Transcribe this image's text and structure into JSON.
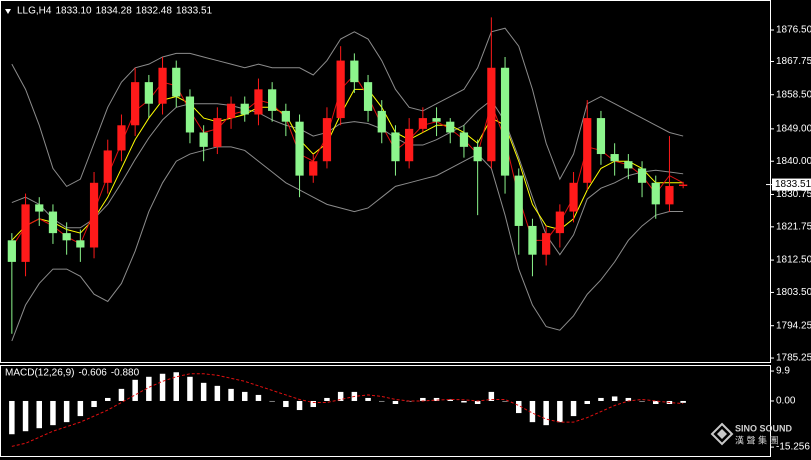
{
  "chart_data": [
    {
      "type": "candlestick",
      "title": "LLG,H4",
      "header_values": [
        {
          "value": 1833.1,
          "label": "1833.10"
        },
        {
          "value": 1834.28,
          "label": "1834.28"
        },
        {
          "value": 1832.48,
          "label": "1832.48"
        },
        {
          "value": 1833.51,
          "label": "1833.51"
        }
      ],
      "current_price": {
        "value": 1833.51,
        "label": "1833.51"
      },
      "up_color": "#ff1a1a",
      "down_color": "#8cf58c",
      "open": [
        1818,
        1812,
        1828,
        1826,
        1820,
        1818,
        1816,
        1834,
        1843,
        1850,
        1862,
        1856,
        1866,
        1858,
        1848,
        1844,
        1852,
        1856,
        1853,
        1860,
        1854,
        1851,
        1836,
        1840,
        1852,
        1868,
        1862,
        1854,
        1848,
        1840,
        1849,
        1852,
        1851,
        1848,
        1844,
        1840,
        1866,
        1836,
        1822,
        1814,
        1820,
        1826,
        1834,
        1852,
        1842,
        1840,
        1838,
        1834,
        1828,
        1833.1
      ],
      "high": [
        1820,
        1831,
        1830,
        1828,
        1823,
        1821,
        1837,
        1846,
        1853,
        1866,
        1864,
        1869,
        1868,
        1860,
        1850,
        1855,
        1858,
        1858,
        1863,
        1862,
        1856,
        1853,
        1842,
        1855,
        1872,
        1870,
        1864,
        1857,
        1850,
        1852,
        1855,
        1855,
        1852,
        1850,
        1846,
        1880,
        1869,
        1838,
        1824,
        1822,
        1828,
        1837,
        1857,
        1854,
        1845,
        1842,
        1840,
        1836,
        1847,
        1834.28
      ],
      "low": [
        1792,
        1808,
        1822,
        1817,
        1814,
        1812,
        1813,
        1831,
        1840,
        1847,
        1852,
        1853,
        1855,
        1845,
        1840,
        1842,
        1849,
        1851,
        1850,
        1851,
        1847,
        1830,
        1834,
        1838,
        1850,
        1859,
        1851,
        1845,
        1836,
        1838,
        1848,
        1847,
        1845,
        1841,
        1825,
        1838,
        1831,
        1814,
        1808,
        1811,
        1816,
        1823,
        1832,
        1839,
        1836,
        1835,
        1830,
        1824,
        1826,
        1832.48
      ],
      "close": [
        1812,
        1828,
        1826,
        1820,
        1818,
        1816,
        1834,
        1843,
        1850,
        1862,
        1856,
        1866,
        1858,
        1848,
        1844,
        1852,
        1856,
        1853,
        1860,
        1854,
        1851,
        1836,
        1840,
        1852,
        1868,
        1862,
        1854,
        1848,
        1840,
        1849,
        1852,
        1851,
        1848,
        1844,
        1840,
        1866,
        1836,
        1822,
        1814,
        1820,
        1826,
        1834,
        1852,
        1842,
        1840,
        1838,
        1834,
        1828,
        1833.1,
        1833.51
      ],
      "overlays": [
        {
          "color": "#8c8c8c",
          "values": [
            1867,
            1860,
            1850,
            1838,
            1833,
            1835,
            1845,
            1855,
            1862,
            1866,
            1867,
            1869,
            1870,
            1870,
            1869,
            1868,
            1867,
            1866,
            1867,
            1866,
            1866,
            1866,
            1864,
            1868,
            1874,
            1876,
            1874,
            1868,
            1860,
            1855,
            1854,
            1856,
            1858,
            1860,
            1866,
            1876,
            1877,
            1872,
            1860,
            1845,
            1835,
            1842,
            1856,
            1858,
            1856,
            1854,
            1852,
            1850,
            1848,
            1847
          ]
        },
        {
          "color": "#8c8c8c",
          "values": [
            1828.5,
            1830,
            1828,
            1824,
            1821.5,
            1821.5,
            1824,
            1828,
            1834,
            1840.5,
            1846.5,
            1851.5,
            1855,
            1856,
            1856,
            1856,
            1855.5,
            1854.5,
            1853.5,
            1851.5,
            1850,
            1849,
            1847,
            1848,
            1850.5,
            1851,
            1850.5,
            1849,
            1846.5,
            1844.5,
            1844.5,
            1846,
            1848,
            1850,
            1854,
            1857,
            1851,
            1841,
            1830,
            1819.5,
            1814,
            1819.5,
            1829.5,
            1832.5,
            1834,
            1836,
            1837,
            1837.5,
            1837,
            1836.5
          ]
        },
        {
          "color": "#8c8c8c",
          "values": [
            1790,
            1800,
            1806,
            1810,
            1810,
            1808,
            1803,
            1801,
            1806,
            1815,
            1826,
            1834,
            1840,
            1842,
            1843,
            1844,
            1844,
            1843,
            1840,
            1837,
            1834,
            1832,
            1830,
            1828,
            1827,
            1826,
            1827,
            1830,
            1833,
            1834,
            1835,
            1836,
            1838,
            1840,
            1842,
            1838,
            1825,
            1810,
            1800,
            1794,
            1793,
            1797,
            1803,
            1807,
            1812,
            1818,
            1822,
            1825,
            1826,
            1826
          ]
        },
        {
          "color": "#ffff00",
          "values": [
            1818,
            1822,
            1824,
            1823,
            1821,
            1820,
            1824,
            1830,
            1838,
            1846,
            1852,
            1857,
            1858,
            1856,
            1852,
            1851,
            1852,
            1853,
            1855,
            1855,
            1853,
            1846,
            1842,
            1845,
            1853,
            1860,
            1860,
            1855,
            1848,
            1846,
            1848,
            1850,
            1850,
            1848,
            1845,
            1852,
            1850,
            1840,
            1828,
            1822,
            1821,
            1824,
            1832,
            1838,
            1840,
            1840,
            1838,
            1834,
            1834,
            1834
          ]
        },
        {
          "color": "#e01010",
          "values": [
            1816,
            1822,
            1824,
            1822,
            1819,
            1817,
            1826,
            1836,
            1845,
            1854,
            1857,
            1862,
            1861,
            1854,
            1848,
            1849,
            1853,
            1854,
            1857,
            1856,
            1852,
            1842,
            1840,
            1847,
            1860,
            1864,
            1858,
            1850,
            1843,
            1846,
            1850,
            1851,
            1849,
            1846,
            1842,
            1856,
            1846,
            1830,
            1818,
            1818,
            1823,
            1830,
            1844,
            1843,
            1840,
            1839,
            1836,
            1831,
            1836,
            1834
          ]
        }
      ],
      "ylim": [
        1784.15,
        1884.85
      ],
      "yticks": [
        {
          "value": 1876.5,
          "label": "1876.50"
        },
        {
          "value": 1867.75,
          "label": "1867.75"
        },
        {
          "value": 1858.5,
          "label": "1858.50"
        },
        {
          "value": 1849,
          "label": "1849.00"
        },
        {
          "value": 1840,
          "label": "1840.00"
        },
        {
          "value": 1830.75,
          "label": "1830.75"
        },
        {
          "value": 1821.75,
          "label": "1821.75"
        },
        {
          "value": 1812.5,
          "label": "1812.50"
        },
        {
          "value": 1803.5,
          "label": "1803.50"
        },
        {
          "value": 1794.25,
          "label": "1794.25"
        },
        {
          "value": 1785.25,
          "label": "1785.25"
        }
      ]
    },
    {
      "type": "macd",
      "title": "MACD(12,26,9)",
      "header_values": [
        {
          "value": -0.606,
          "label": "-0.606"
        },
        {
          "value": -0.88,
          "label": "-0.880"
        }
      ],
      "histogram": {
        "color": "#ffffff",
        "values": [
          -11,
          -10,
          -9,
          -8,
          -7,
          -5,
          -2,
          1,
          4,
          7,
          8,
          9,
          9.5,
          8,
          6,
          5,
          4,
          3,
          2,
          0,
          -2,
          -3,
          -2,
          1,
          3,
          3,
          1,
          0,
          -1,
          0,
          1,
          1,
          0.5,
          -0.5,
          -1,
          3,
          0,
          -4,
          -7,
          -8,
          -7,
          -5,
          -1,
          1,
          1.5,
          1,
          0,
          -1,
          -1,
          -0.606
        ]
      },
      "signal": {
        "color": "#e01010",
        "values": [
          -15,
          -14,
          -12,
          -10,
          -8.5,
          -7,
          -5,
          -3,
          -0.5,
          2,
          4.5,
          6.5,
          8,
          9,
          9,
          8.5,
          7.5,
          6.5,
          5,
          3.5,
          2,
          0.5,
          -0.5,
          -0.5,
          0.5,
          1.5,
          2,
          1.5,
          0.5,
          0,
          0,
          0.3,
          0.5,
          0.4,
          0,
          0.5,
          0.5,
          -1.5,
          -4,
          -6,
          -7,
          -7,
          -5.5,
          -3.5,
          -1.5,
          0,
          0.5,
          0,
          -0.5,
          -0.88
        ]
      },
      "ylim": [
        -18.2,
        11.9
      ],
      "yticks": [
        9.9,
        {
          "value": 0,
          "label": "0.00"
        },
        {
          "value": -15.256,
          "label": "-15.256"
        }
      ]
    }
  ],
  "watermark": {
    "line1": "SINO SOUND",
    "line2": "漢 聲 集 團"
  }
}
